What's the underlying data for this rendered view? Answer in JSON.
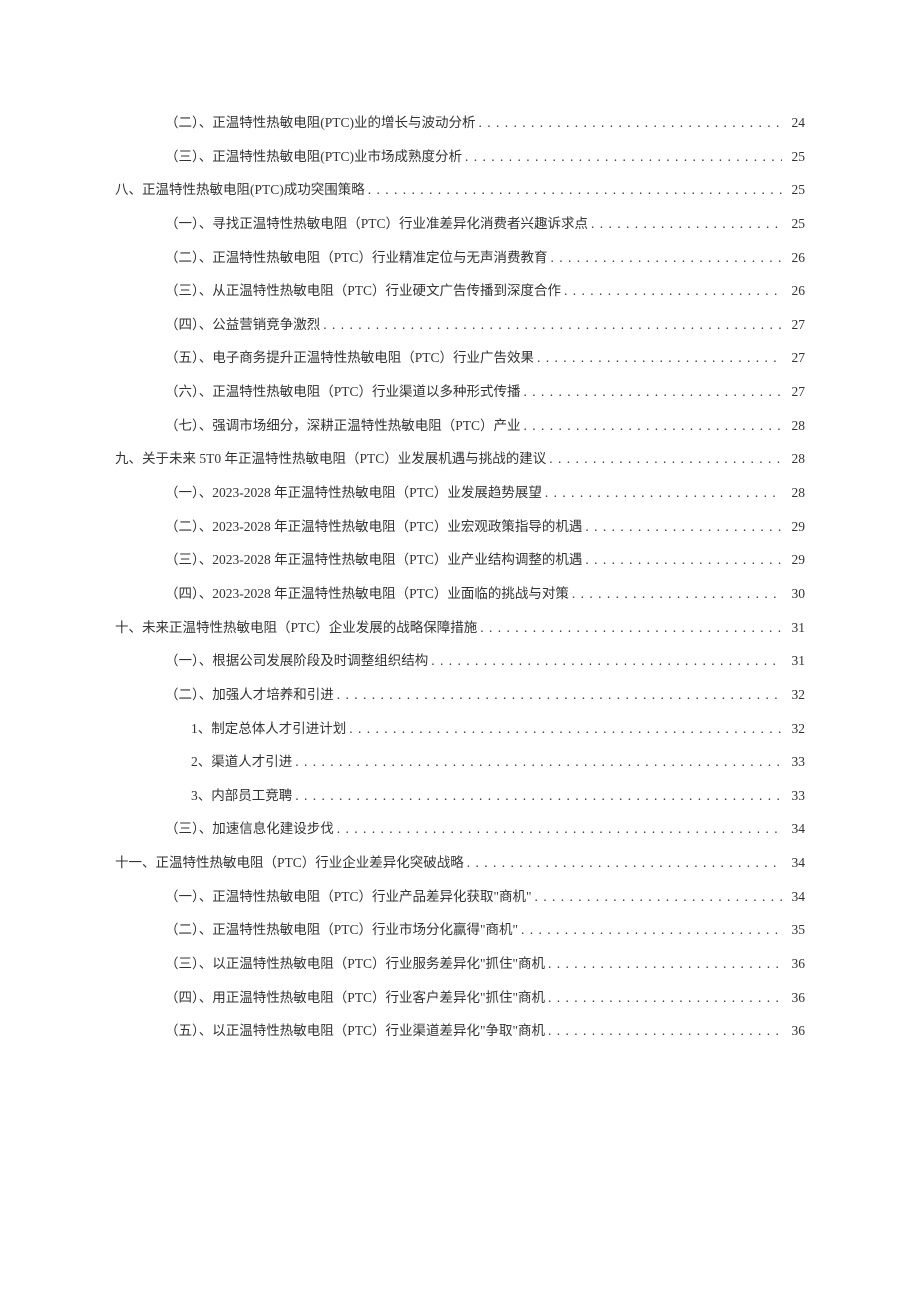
{
  "text_color": "#333333",
  "background_color": "#ffffff",
  "font_size": 13.5,
  "line_height": 1.9,
  "entries": [
    {
      "level": 2,
      "title": "（二）、正温特性热敏电阻(PTC)业的增长与波动分析",
      "page": "24"
    },
    {
      "level": 2,
      "title": "（三）、正温特性热敏电阻(PTC)业市场成熟度分析",
      "page": "25"
    },
    {
      "level": 1,
      "title": "八、正温特性热敏电阻(PTC)成功突围策略",
      "page": "25"
    },
    {
      "level": 2,
      "title": "（一）、寻找正温特性热敏电阻（PTC）行业准差异化消费者兴趣诉求点",
      "page": "25"
    },
    {
      "level": 2,
      "title": "（二）、正温特性热敏电阻（PTC）行业精准定位与无声消费教育",
      "page": "26"
    },
    {
      "level": 2,
      "title": "（三）、从正温特性热敏电阻（PTC）行业硬文广告传播到深度合作",
      "page": "26"
    },
    {
      "level": 2,
      "title": "（四）、公益营销竞争激烈",
      "page": "27"
    },
    {
      "level": 2,
      "title": "（五）、电子商务提升正温特性热敏电阻（PTC）行业广告效果",
      "page": "27"
    },
    {
      "level": 2,
      "title": "（六）、正温特性热敏电阻（PTC）行业渠道以多种形式传播",
      "page": "27"
    },
    {
      "level": 2,
      "title": "（七）、强调市场细分，深耕正温特性热敏电阻（PTC）产业",
      "page": "28"
    },
    {
      "level": 1,
      "title": "九、关于未来 5T0 年正温特性热敏电阻（PTC）业发展机遇与挑战的建议",
      "page": "28"
    },
    {
      "level": 2,
      "title": "（一）、2023-2028 年正温特性热敏电阻（PTC）业发展趋势展望",
      "page": "28"
    },
    {
      "level": 2,
      "title": "（二）、2023-2028 年正温特性热敏电阻（PTC）业宏观政策指导的机遇",
      "page": "29"
    },
    {
      "level": 2,
      "title": "（三）、2023-2028 年正温特性热敏电阻（PTC）业产业结构调整的机遇",
      "page": "29"
    },
    {
      "level": 2,
      "title": "（四）、2023-2028 年正温特性热敏电阻（PTC）业面临的挑战与对策",
      "page": "30"
    },
    {
      "level": 1,
      "title": "十、未来正温特性热敏电阻（PTC）企业发展的战略保障措施",
      "page": "31"
    },
    {
      "level": 2,
      "title": "（一）、根据公司发展阶段及时调整组织结构",
      "page": "31"
    },
    {
      "level": 2,
      "title": "（二）、加强人才培养和引进",
      "page": "32"
    },
    {
      "level": 3,
      "title": "1、制定总体人才引进计划",
      "page": "32"
    },
    {
      "level": 3,
      "title": "2、渠道人才引进",
      "page": "33"
    },
    {
      "level": 3,
      "title": "3、内部员工竞聘",
      "page": "33"
    },
    {
      "level": 2,
      "title": "（三）、加速信息化建设步伐",
      "page": "34"
    },
    {
      "level": 1,
      "title": "十一、正温特性热敏电阻（PTC）行业企业差异化突破战略",
      "page": "34"
    },
    {
      "level": 2,
      "title": "（一）、正温特性热敏电阻（PTC）行业产品差异化获取\"商机\"",
      "page": "34"
    },
    {
      "level": 2,
      "title": "（二）、正温特性热敏电阻（PTC）行业市场分化赢得\"商机\"",
      "page": "35"
    },
    {
      "level": 2,
      "title": "（三）、以正温特性热敏电阻（PTC）行业服务差异化\"抓住\"商机",
      "page": "36"
    },
    {
      "level": 2,
      "title": "（四）、用正温特性热敏电阻（PTC）行业客户差异化\"抓住\"商机",
      "page": "36"
    },
    {
      "level": 2,
      "title": "（五）、以正温特性热敏电阻（PTC）行业渠道差异化\"争取\"商机",
      "page": "36"
    }
  ]
}
